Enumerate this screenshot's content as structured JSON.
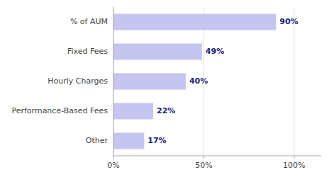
{
  "chart_data": {
    "type": "bar",
    "orientation": "horizontal",
    "categories": [
      "% of AUM",
      "Fixed Fees",
      "Hourly Charges",
      "Performance-Based Fees",
      "Other"
    ],
    "values": [
      90,
      49,
      40,
      22,
      17
    ],
    "value_labels": [
      "90%",
      "49%",
      "40%",
      "22%",
      "17%"
    ],
    "data_labels": true,
    "color": "#c5c5f0",
    "xlim": [
      0,
      115
    ],
    "xticks": [
      {
        "value": 0,
        "label": "0%"
      },
      {
        "value": 50,
        "label": "50%"
      },
      {
        "value": 100,
        "label": "100%"
      }
    ],
    "grid": true
  }
}
